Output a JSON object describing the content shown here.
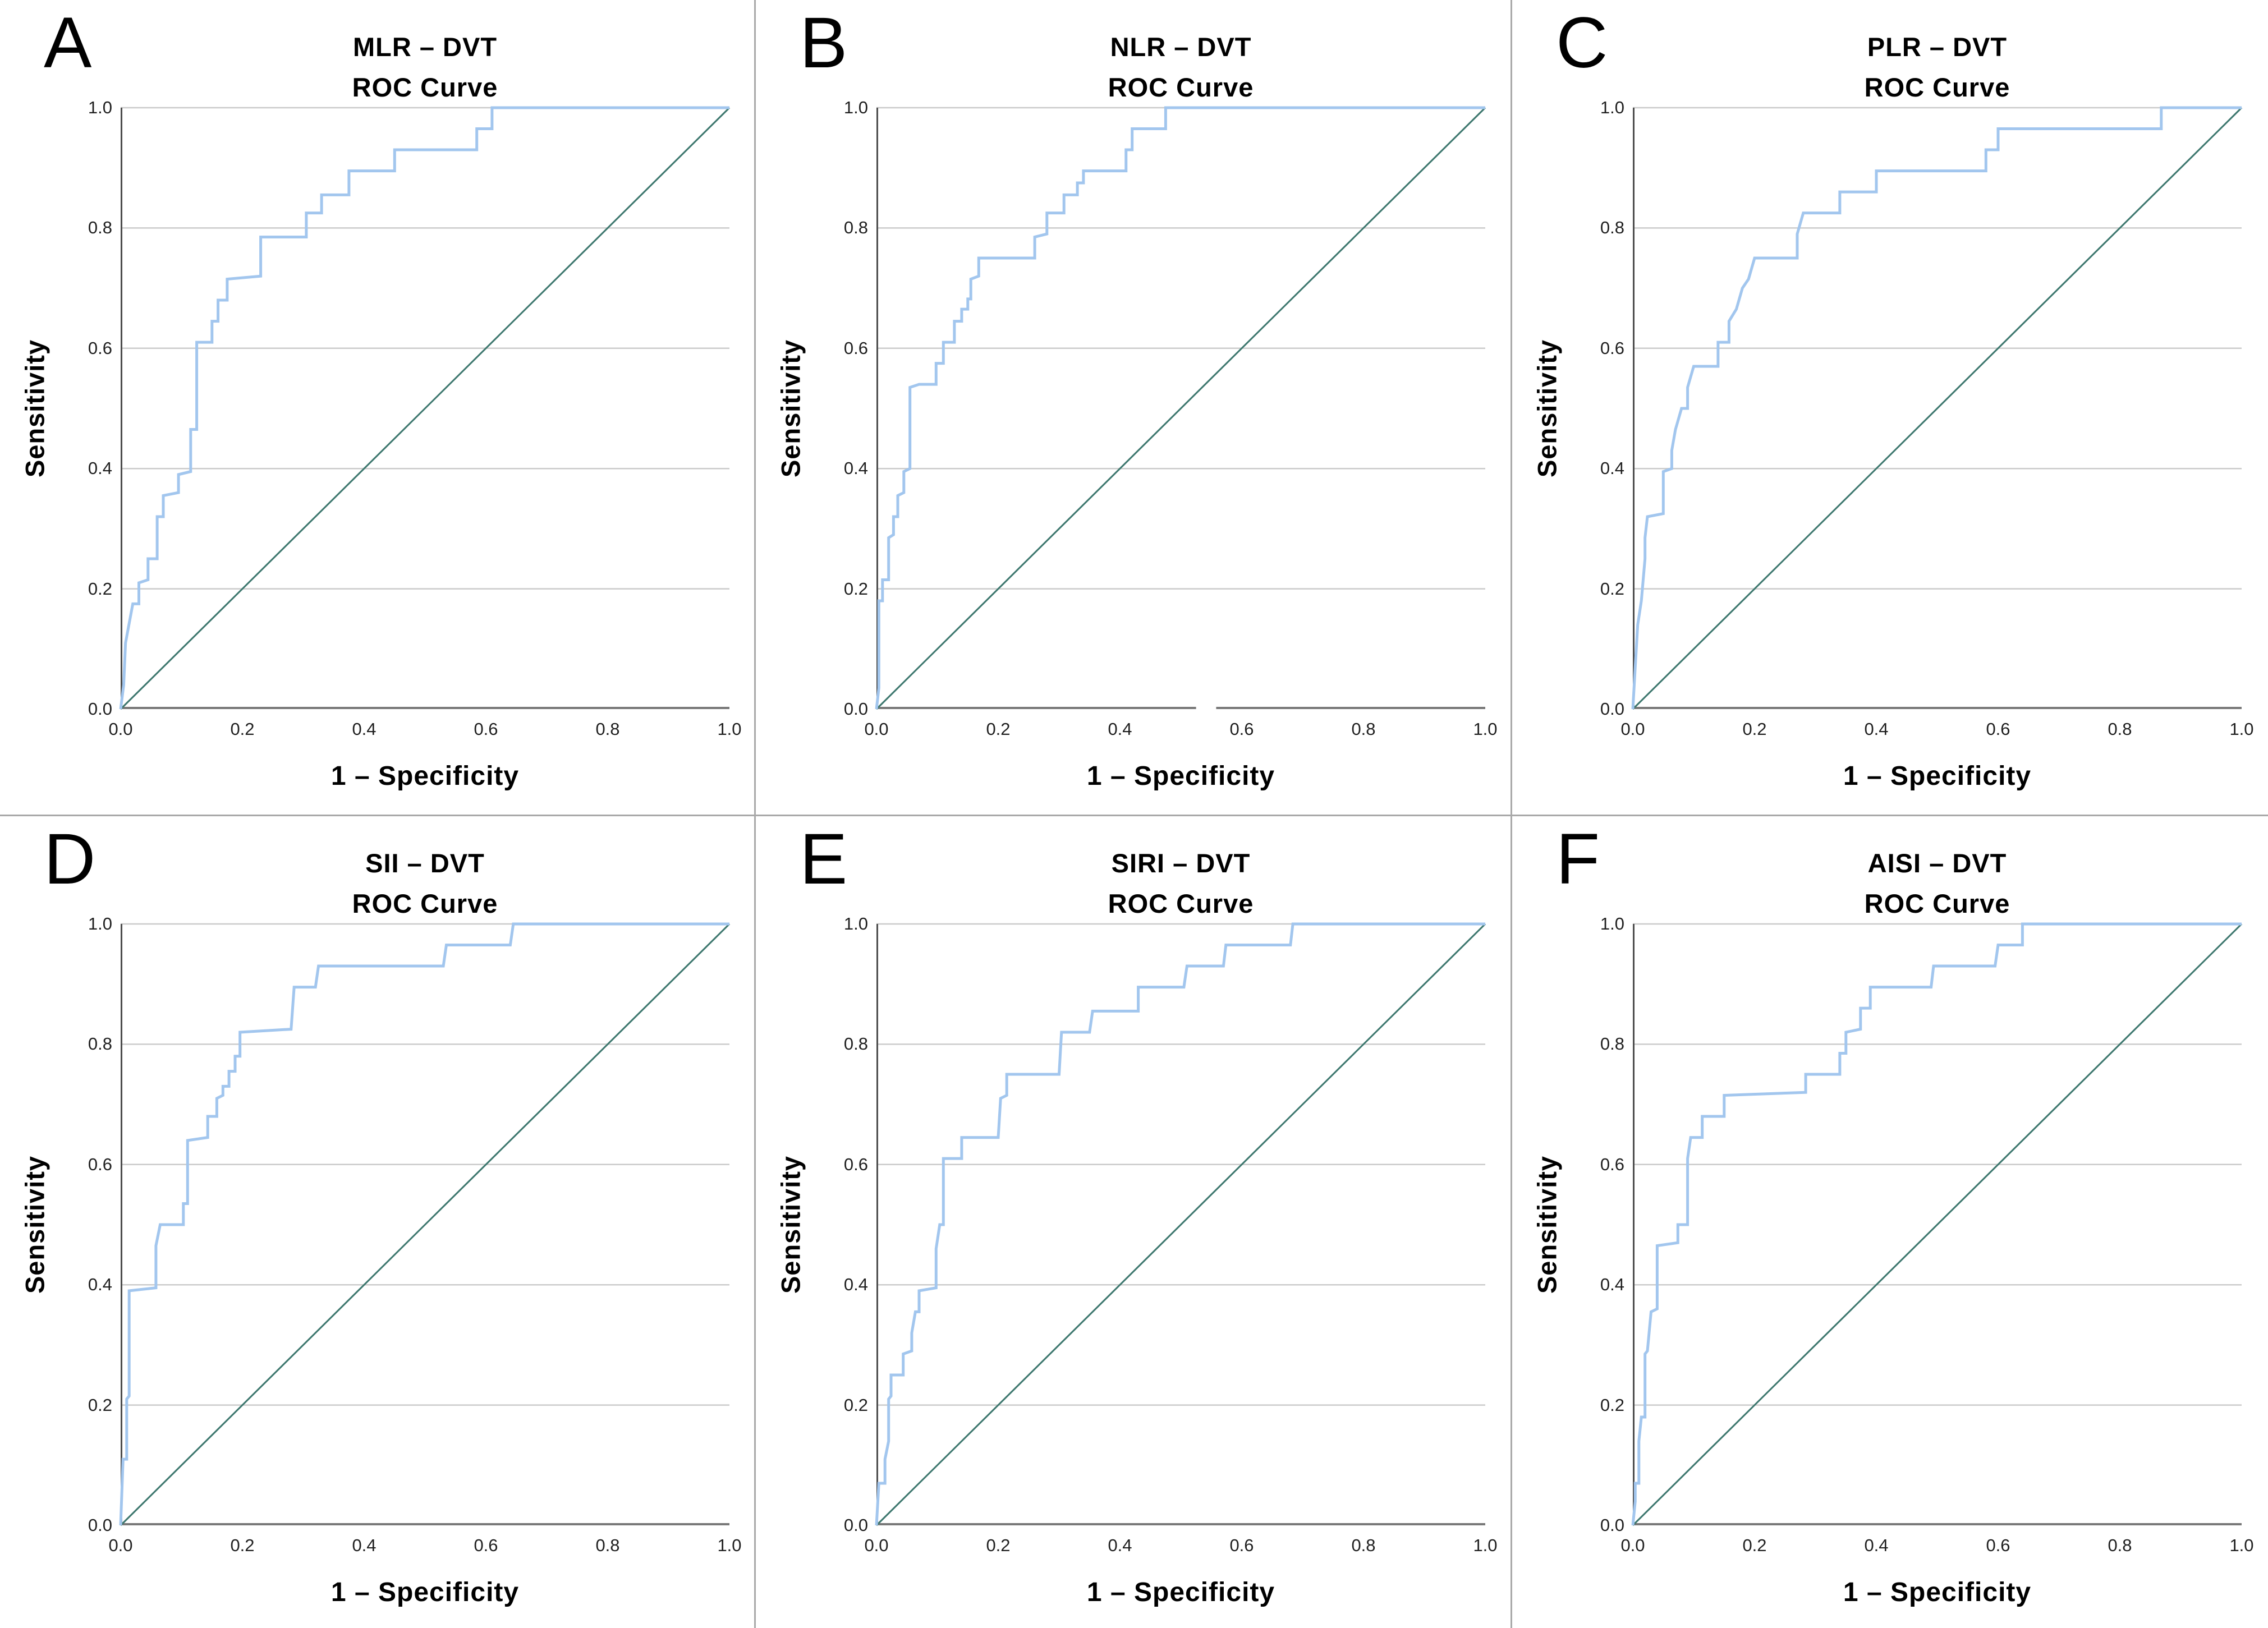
{
  "figure": {
    "background": "#ffffff",
    "grid_rows": 2,
    "grid_cols": 3,
    "divider_color": "#a9a9a9"
  },
  "styles": {
    "curve_color": "#a2c6ee",
    "diagonal_color": "#3d776e",
    "gridline_color": "#cbcbcb",
    "y_axis_color": "#4d4d4d",
    "x_axis_color": "#787878",
    "text_color": "#000000",
    "tick_text_color": "#1f1f1f"
  },
  "chart_data": [
    {
      "type": "line",
      "letter": "A",
      "title": "MLR – DVT",
      "subtitle": "ROC Curve",
      "xlabel": "1 – Specificity",
      "ylabel": "Sensitivity",
      "xlim": [
        0,
        1
      ],
      "ylim": [
        0,
        1
      ],
      "x_ticks": [
        "0.0",
        "0.2",
        "0.4",
        "0.6",
        "0.8",
        "1.0"
      ],
      "y_ticks": [
        "0.0",
        "0.2",
        "0.4",
        "0.6",
        "0.8",
        "1.0"
      ],
      "grid": "horizontal",
      "reference_line": [
        [
          0,
          0
        ],
        [
          1,
          1
        ]
      ],
      "axis_gap": null,
      "points": [
        [
          0,
          0
        ],
        [
          0.005,
          0.04
        ],
        [
          0.008,
          0.11
        ],
        [
          0.02,
          0.175
        ],
        [
          0.03,
          0.175
        ],
        [
          0.03,
          0.21
        ],
        [
          0.045,
          0.215
        ],
        [
          0.045,
          0.25
        ],
        [
          0.06,
          0.25
        ],
        [
          0.06,
          0.32
        ],
        [
          0.07,
          0.32
        ],
        [
          0.07,
          0.355
        ],
        [
          0.095,
          0.36
        ],
        [
          0.095,
          0.39
        ],
        [
          0.115,
          0.395
        ],
        [
          0.115,
          0.465
        ],
        [
          0.125,
          0.465
        ],
        [
          0.125,
          0.61
        ],
        [
          0.15,
          0.61
        ],
        [
          0.15,
          0.645
        ],
        [
          0.16,
          0.645
        ],
        [
          0.16,
          0.68
        ],
        [
          0.175,
          0.68
        ],
        [
          0.175,
          0.715
        ],
        [
          0.23,
          0.72
        ],
        [
          0.23,
          0.785
        ],
        [
          0.305,
          0.785
        ],
        [
          0.305,
          0.825
        ],
        [
          0.33,
          0.825
        ],
        [
          0.33,
          0.855
        ],
        [
          0.375,
          0.855
        ],
        [
          0.375,
          0.895
        ],
        [
          0.45,
          0.895
        ],
        [
          0.45,
          0.93
        ],
        [
          0.585,
          0.93
        ],
        [
          0.585,
          0.965
        ],
        [
          0.61,
          0.965
        ],
        [
          0.61,
          1
        ],
        [
          1,
          1
        ]
      ]
    },
    {
      "type": "line",
      "letter": "B",
      "title": "NLR – DVT",
      "subtitle": "ROC Curve",
      "xlabel": "1 – Specificity",
      "ylabel": "Sensitivity",
      "xlim": [
        0,
        1
      ],
      "ylim": [
        0,
        1
      ],
      "x_ticks": [
        "0.0",
        "0.2",
        "0.4",
        "0.6",
        "0.8",
        "1.0"
      ],
      "y_ticks": [
        "0.0",
        "0.2",
        "0.4",
        "0.6",
        "0.8",
        "1.0"
      ],
      "grid": "horizontal",
      "reference_line": [
        [
          0,
          0
        ],
        [
          1,
          1
        ]
      ],
      "axis_gap": [
        0.525,
        0.558
      ],
      "points": [
        [
          0,
          0
        ],
        [
          0.004,
          0.035
        ],
        [
          0.004,
          0.18
        ],
        [
          0.01,
          0.18
        ],
        [
          0.01,
          0.215
        ],
        [
          0.02,
          0.215
        ],
        [
          0.02,
          0.285
        ],
        [
          0.028,
          0.29
        ],
        [
          0.028,
          0.32
        ],
        [
          0.035,
          0.32
        ],
        [
          0.035,
          0.355
        ],
        [
          0.045,
          0.36
        ],
        [
          0.045,
          0.395
        ],
        [
          0.055,
          0.4
        ],
        [
          0.055,
          0.535
        ],
        [
          0.07,
          0.54
        ],
        [
          0.098,
          0.54
        ],
        [
          0.098,
          0.575
        ],
        [
          0.11,
          0.575
        ],
        [
          0.11,
          0.61
        ],
        [
          0.128,
          0.61
        ],
        [
          0.128,
          0.645
        ],
        [
          0.14,
          0.645
        ],
        [
          0.14,
          0.665
        ],
        [
          0.15,
          0.665
        ],
        [
          0.15,
          0.682
        ],
        [
          0.155,
          0.682
        ],
        [
          0.155,
          0.715
        ],
        [
          0.168,
          0.72
        ],
        [
          0.168,
          0.75
        ],
        [
          0.26,
          0.75
        ],
        [
          0.26,
          0.785
        ],
        [
          0.28,
          0.79
        ],
        [
          0.28,
          0.825
        ],
        [
          0.308,
          0.825
        ],
        [
          0.308,
          0.855
        ],
        [
          0.33,
          0.855
        ],
        [
          0.33,
          0.875
        ],
        [
          0.34,
          0.875
        ],
        [
          0.34,
          0.895
        ],
        [
          0.41,
          0.895
        ],
        [
          0.41,
          0.93
        ],
        [
          0.42,
          0.93
        ],
        [
          0.42,
          0.965
        ],
        [
          0.475,
          0.965
        ],
        [
          0.475,
          1
        ],
        [
          1,
          1
        ]
      ]
    },
    {
      "type": "line",
      "letter": "C",
      "title": "PLR – DVT",
      "subtitle": "ROC Curve",
      "xlabel": "1 – Specificity",
      "ylabel": "Sensitivity",
      "xlim": [
        0,
        1
      ],
      "ylim": [
        0,
        1
      ],
      "x_ticks": [
        "0.0",
        "0.2",
        "0.4",
        "0.6",
        "0.8",
        "1.0"
      ],
      "y_ticks": [
        "0.0",
        "0.2",
        "0.4",
        "0.6",
        "0.8",
        "1.0"
      ],
      "grid": "horizontal",
      "reference_line": [
        [
          0,
          0
        ],
        [
          1,
          1
        ]
      ],
      "axis_gap": null,
      "points": [
        [
          0,
          0
        ],
        [
          0.004,
          0.07
        ],
        [
          0.008,
          0.14
        ],
        [
          0.014,
          0.18
        ],
        [
          0.02,
          0.25
        ],
        [
          0.02,
          0.285
        ],
        [
          0.024,
          0.32
        ],
        [
          0.05,
          0.325
        ],
        [
          0.05,
          0.395
        ],
        [
          0.064,
          0.4
        ],
        [
          0.064,
          0.43
        ],
        [
          0.07,
          0.465
        ],
        [
          0.08,
          0.5
        ],
        [
          0.09,
          0.5
        ],
        [
          0.09,
          0.535
        ],
        [
          0.1,
          0.57
        ],
        [
          0.14,
          0.57
        ],
        [
          0.14,
          0.61
        ],
        [
          0.158,
          0.61
        ],
        [
          0.158,
          0.645
        ],
        [
          0.17,
          0.665
        ],
        [
          0.18,
          0.7
        ],
        [
          0.19,
          0.715
        ],
        [
          0.2,
          0.75
        ],
        [
          0.27,
          0.75
        ],
        [
          0.27,
          0.79
        ],
        [
          0.28,
          0.825
        ],
        [
          0.34,
          0.825
        ],
        [
          0.34,
          0.86
        ],
        [
          0.4,
          0.86
        ],
        [
          0.4,
          0.895
        ],
        [
          0.58,
          0.895
        ],
        [
          0.58,
          0.93
        ],
        [
          0.6,
          0.93
        ],
        [
          0.6,
          0.965
        ],
        [
          0.868,
          0.965
        ],
        [
          0.868,
          1
        ],
        [
          1,
          1
        ]
      ]
    },
    {
      "type": "line",
      "letter": "D",
      "title": "SII – DVT",
      "subtitle": "ROC Curve",
      "xlabel": "1 – Specificity",
      "ylabel": "Sensitivity",
      "xlim": [
        0,
        1
      ],
      "ylim": [
        0,
        1
      ],
      "x_ticks": [
        "0.0",
        "0.2",
        "0.4",
        "0.6",
        "0.8",
        "1.0"
      ],
      "y_ticks": [
        "0.0",
        "0.2",
        "0.4",
        "0.6",
        "0.8",
        "1.0"
      ],
      "grid": "horizontal",
      "reference_line": [
        [
          0,
          0
        ],
        [
          1,
          1
        ]
      ],
      "axis_gap": null,
      "points": [
        [
          0,
          0
        ],
        [
          0.004,
          0.11
        ],
        [
          0.01,
          0.11
        ],
        [
          0.01,
          0.21
        ],
        [
          0.014,
          0.215
        ],
        [
          0.014,
          0.39
        ],
        [
          0.058,
          0.395
        ],
        [
          0.058,
          0.465
        ],
        [
          0.065,
          0.5
        ],
        [
          0.103,
          0.5
        ],
        [
          0.103,
          0.535
        ],
        [
          0.11,
          0.535
        ],
        [
          0.11,
          0.64
        ],
        [
          0.143,
          0.645
        ],
        [
          0.143,
          0.68
        ],
        [
          0.158,
          0.68
        ],
        [
          0.158,
          0.71
        ],
        [
          0.168,
          0.715
        ],
        [
          0.168,
          0.73
        ],
        [
          0.178,
          0.73
        ],
        [
          0.178,
          0.755
        ],
        [
          0.188,
          0.755
        ],
        [
          0.188,
          0.78
        ],
        [
          0.196,
          0.78
        ],
        [
          0.196,
          0.82
        ],
        [
          0.28,
          0.825
        ],
        [
          0.285,
          0.895
        ],
        [
          0.32,
          0.895
        ],
        [
          0.325,
          0.93
        ],
        [
          0.53,
          0.93
        ],
        [
          0.535,
          0.965
        ],
        [
          0.64,
          0.965
        ],
        [
          0.645,
          1
        ],
        [
          1,
          1
        ]
      ]
    },
    {
      "type": "line",
      "letter": "E",
      "title": "SIRI – DVT",
      "subtitle": "ROC Curve",
      "xlabel": "1 – Specificity",
      "ylabel": "Sensitivity",
      "xlim": [
        0,
        1
      ],
      "ylim": [
        0,
        1
      ],
      "x_ticks": [
        "0.0",
        "0.2",
        "0.4",
        "0.6",
        "0.8",
        "1.0"
      ],
      "y_ticks": [
        "0.0",
        "0.2",
        "0.4",
        "0.6",
        "0.8",
        "1.0"
      ],
      "grid": "horizontal",
      "reference_line": [
        [
          0,
          0
        ],
        [
          1,
          1
        ]
      ],
      "axis_gap": null,
      "points": [
        [
          0,
          0
        ],
        [
          0.004,
          0.07
        ],
        [
          0.014,
          0.07
        ],
        [
          0.014,
          0.11
        ],
        [
          0.02,
          0.14
        ],
        [
          0.02,
          0.21
        ],
        [
          0.024,
          0.215
        ],
        [
          0.024,
          0.25
        ],
        [
          0.044,
          0.25
        ],
        [
          0.044,
          0.285
        ],
        [
          0.058,
          0.29
        ],
        [
          0.058,
          0.32
        ],
        [
          0.064,
          0.355
        ],
        [
          0.07,
          0.355
        ],
        [
          0.07,
          0.39
        ],
        [
          0.098,
          0.395
        ],
        [
          0.098,
          0.46
        ],
        [
          0.104,
          0.5
        ],
        [
          0.11,
          0.5
        ],
        [
          0.11,
          0.61
        ],
        [
          0.14,
          0.61
        ],
        [
          0.14,
          0.645
        ],
        [
          0.2,
          0.645
        ],
        [
          0.204,
          0.71
        ],
        [
          0.214,
          0.715
        ],
        [
          0.214,
          0.75
        ],
        [
          0.3,
          0.75
        ],
        [
          0.304,
          0.82
        ],
        [
          0.35,
          0.82
        ],
        [
          0.355,
          0.855
        ],
        [
          0.43,
          0.855
        ],
        [
          0.43,
          0.895
        ],
        [
          0.505,
          0.895
        ],
        [
          0.51,
          0.93
        ],
        [
          0.57,
          0.93
        ],
        [
          0.574,
          0.965
        ],
        [
          0.68,
          0.965
        ],
        [
          0.684,
          1
        ],
        [
          1,
          1
        ]
      ]
    },
    {
      "type": "line",
      "letter": "F",
      "title": "AISI – DVT",
      "subtitle": "ROC Curve",
      "xlabel": "1 – Specificity",
      "ylabel": "Sensitivity",
      "xlim": [
        0,
        1
      ],
      "ylim": [
        0,
        1
      ],
      "x_ticks": [
        "0.0",
        "0.2",
        "0.4",
        "0.6",
        "0.8",
        "1.0"
      ],
      "y_ticks": [
        "0.0",
        "0.2",
        "0.4",
        "0.6",
        "0.8",
        "1.0"
      ],
      "grid": "horizontal",
      "reference_line": [
        [
          0,
          0
        ],
        [
          1,
          1
        ]
      ],
      "axis_gap": null,
      "points": [
        [
          0,
          0
        ],
        [
          0.004,
          0.04
        ],
        [
          0.004,
          0.07
        ],
        [
          0.01,
          0.07
        ],
        [
          0.01,
          0.14
        ],
        [
          0.014,
          0.18
        ],
        [
          0.02,
          0.18
        ],
        [
          0.02,
          0.285
        ],
        [
          0.024,
          0.29
        ],
        [
          0.03,
          0.355
        ],
        [
          0.04,
          0.36
        ],
        [
          0.04,
          0.465
        ],
        [
          0.074,
          0.47
        ],
        [
          0.074,
          0.5
        ],
        [
          0.09,
          0.5
        ],
        [
          0.09,
          0.61
        ],
        [
          0.095,
          0.645
        ],
        [
          0.114,
          0.645
        ],
        [
          0.114,
          0.68
        ],
        [
          0.15,
          0.68
        ],
        [
          0.15,
          0.715
        ],
        [
          0.284,
          0.72
        ],
        [
          0.284,
          0.75
        ],
        [
          0.34,
          0.75
        ],
        [
          0.34,
          0.785
        ],
        [
          0.35,
          0.785
        ],
        [
          0.35,
          0.82
        ],
        [
          0.374,
          0.825
        ],
        [
          0.374,
          0.86
        ],
        [
          0.39,
          0.86
        ],
        [
          0.39,
          0.895
        ],
        [
          0.49,
          0.895
        ],
        [
          0.494,
          0.93
        ],
        [
          0.595,
          0.93
        ],
        [
          0.6,
          0.965
        ],
        [
          0.64,
          0.965
        ],
        [
          0.64,
          1
        ],
        [
          1,
          1
        ]
      ]
    }
  ]
}
